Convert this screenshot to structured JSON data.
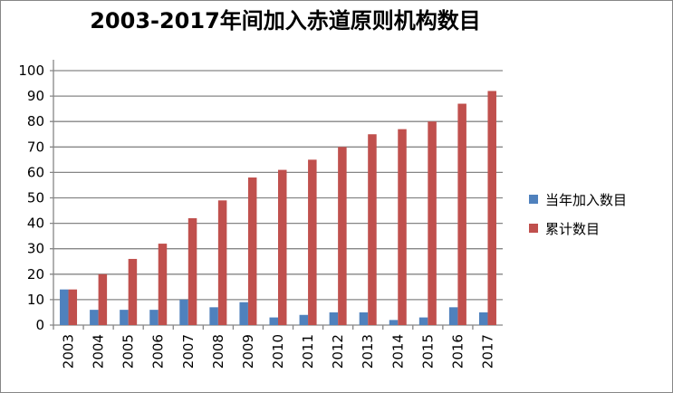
{
  "chart_data": {
    "type": "bar",
    "title": "2003-2017年间加入赤道原则机构数目",
    "xlabel": "",
    "ylabel": "",
    "ylim": [
      0,
      100
    ],
    "yticks": [
      "0",
      "10",
      "20",
      "30",
      "40",
      "50",
      "60",
      "70",
      "80",
      "90",
      "100"
    ],
    "categories": [
      "2003",
      "2004",
      "2005",
      "2006",
      "2007",
      "2008",
      "2009",
      "2010",
      "2011",
      "2012",
      "2013",
      "2014",
      "2015",
      "2016",
      "2017"
    ],
    "series": [
      {
        "name": "当年加入数目",
        "color": "#4F81BD",
        "values": [
          14,
          6,
          6,
          6,
          10,
          7,
          9,
          3,
          4,
          5,
          5,
          2,
          3,
          7,
          5
        ]
      },
      {
        "name": "累计数目",
        "color": "#C0504D",
        "values": [
          14,
          20,
          26,
          32,
          42,
          49,
          58,
          61,
          65,
          70,
          75,
          77,
          80,
          87,
          92
        ]
      }
    ],
    "grid": true,
    "legend": "right"
  }
}
